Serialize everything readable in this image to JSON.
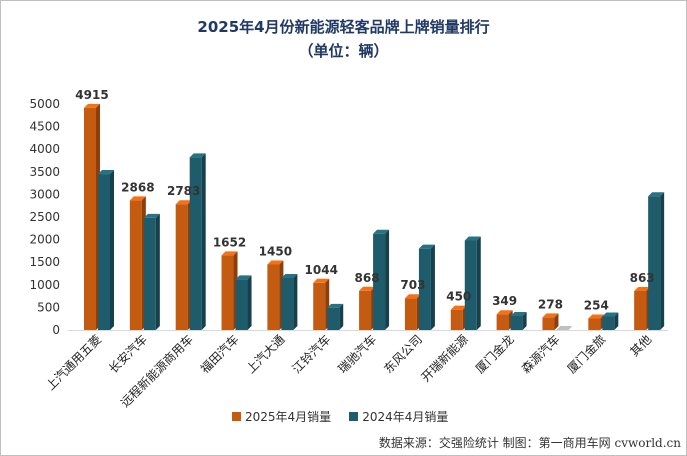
{
  "chart_data": {
    "type": "bar",
    "title": "2025年4月份新能源轻客品牌上牌销量排行",
    "subtitle": "（单位：辆）",
    "categories": [
      "上汽通用五菱",
      "长安汽车",
      "远程新能源商用车",
      "福田汽车",
      "上汽大通",
      "江铃汽车",
      "瑞驰汽车",
      "东风公司",
      "开瑞新能源",
      "厦门金龙",
      "森源汽车",
      "厦门金旅",
      "其他"
    ],
    "series": [
      {
        "name": "2025年4月销量",
        "color": "#c55a11",
        "values": [
          4915,
          2868,
          2783,
          1652,
          1450,
          1044,
          868,
          703,
          450,
          349,
          278,
          254,
          863
        ],
        "labels": [
          "4915",
          "2868",
          "2783",
          "1652",
          "1450",
          "1044",
          "868",
          "703",
          "450",
          "349",
          "278",
          "254",
          "863"
        ]
      },
      {
        "name": "2024年4月销量",
        "color": "#1f5c6b",
        "values": [
          3450,
          2480,
          3820,
          1120,
          1150,
          490,
          2130,
          1800,
          1980,
          310,
          0,
          300,
          2960
        ]
      }
    ],
    "yticks": [
      "0",
      "500",
      "1000",
      "1500",
      "2000",
      "2500",
      "3000",
      "3500",
      "4000",
      "4500",
      "5000"
    ],
    "ylim": [
      0,
      5000
    ],
    "grid": false,
    "legend_position": "bottom"
  },
  "source_note": "数据来源：交强险统计  制图：第一商用车网 cvworld.cn"
}
